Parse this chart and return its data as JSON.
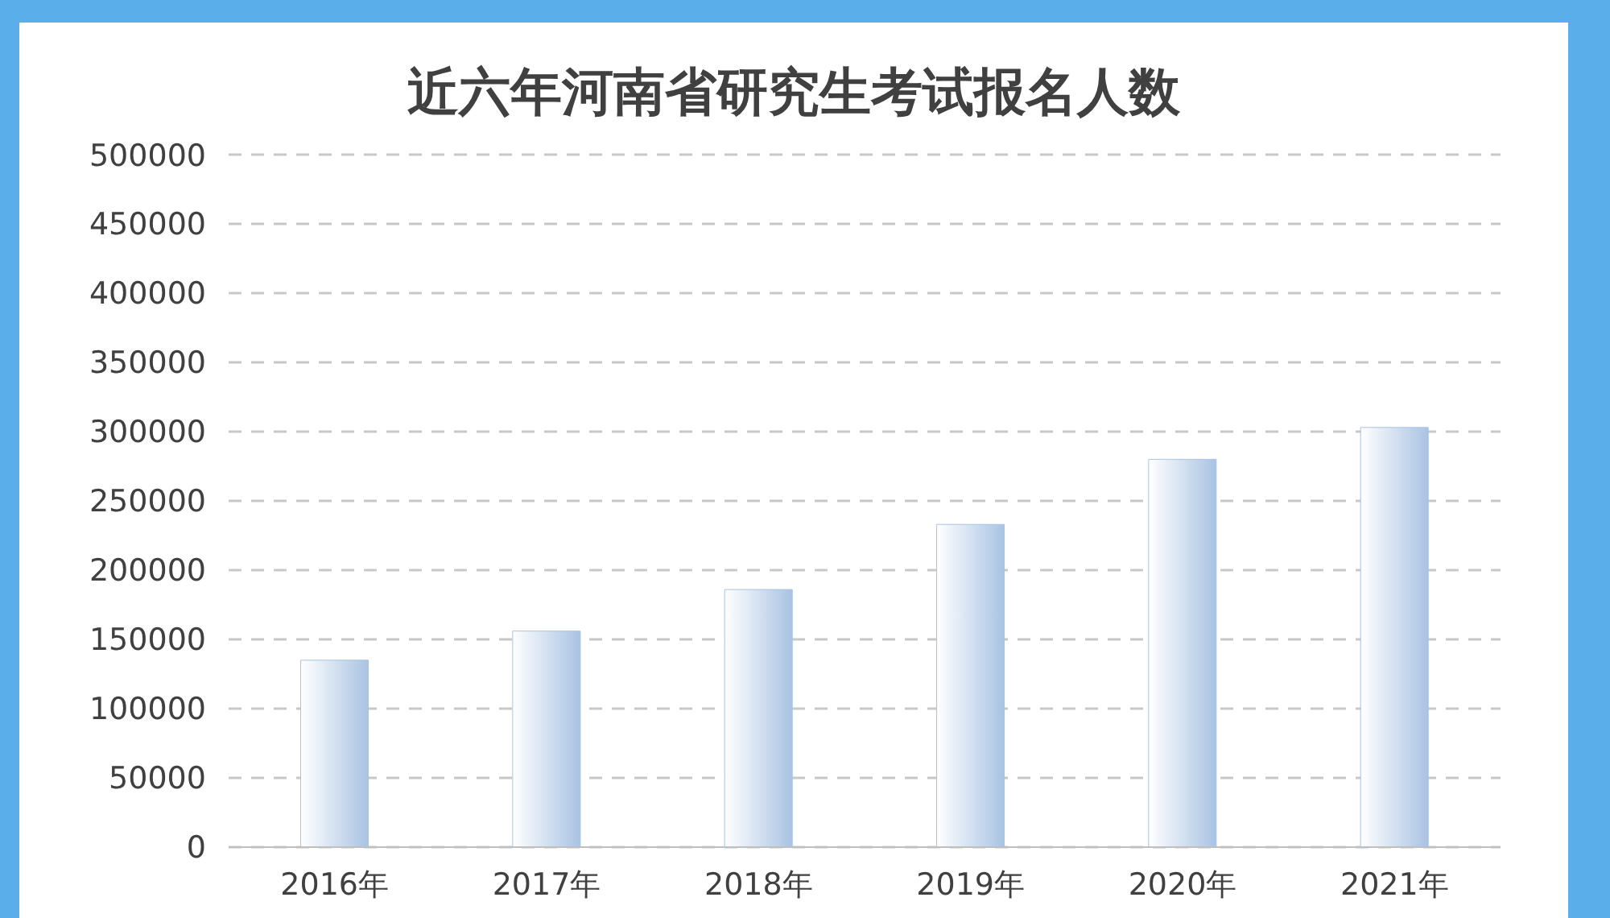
{
  "chart_data": {
    "type": "bar",
    "title": "近六年河南省研究生考试报名人数",
    "categories": [
      "2016年",
      "2017年",
      "2018年",
      "2019年",
      "2020年",
      "2021年"
    ],
    "values": [
      135000,
      156000,
      186000,
      233000,
      280000,
      303000
    ],
    "color": "#a9c3e3",
    "ylim": [
      0,
      500000
    ],
    "yticks": [
      0,
      50000,
      100000,
      150000,
      200000,
      250000,
      300000,
      350000,
      400000,
      450000,
      500000
    ],
    "grid": "y"
  }
}
